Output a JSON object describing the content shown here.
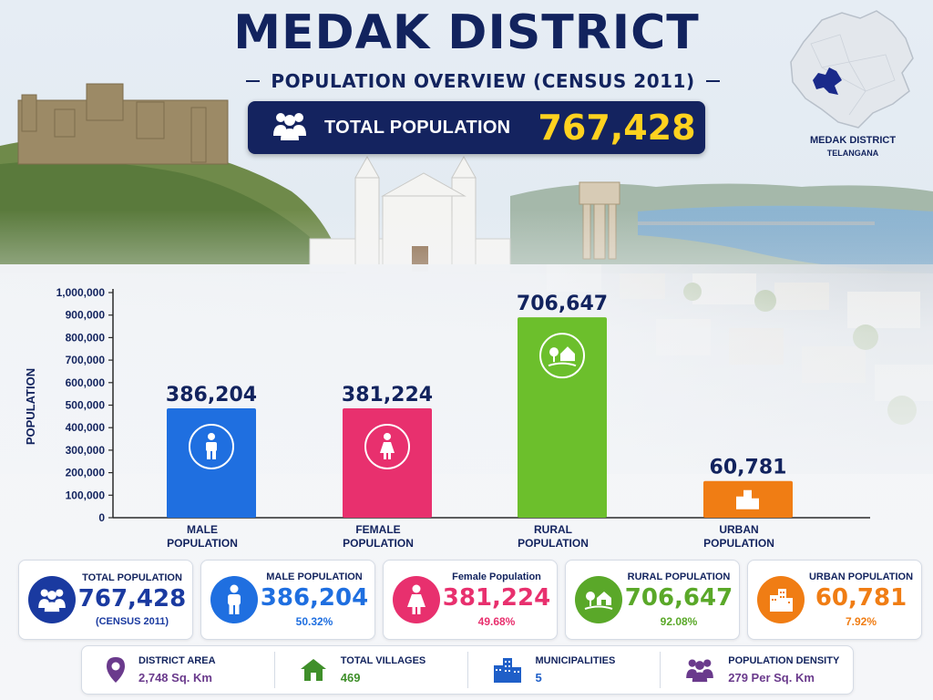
{
  "header": {
    "title": "MEDAK DISTRICT",
    "subtitle": "POPULATION OVERVIEW (CENSUS 2011)",
    "total_label": "TOTAL POPULATION",
    "total_value": "767,428"
  },
  "map": {
    "label": "MEDAK DISTRICT",
    "state": "TELANGANA",
    "highlight_color": "#1a2a8a"
  },
  "chart_data": {
    "type": "bar",
    "title": "",
    "ylabel": "POPULATION",
    "xlabel": "",
    "ylim": [
      0,
      1000000
    ],
    "yticks": [
      "0",
      "100,000",
      "200,000",
      "300,000",
      "400,000",
      "500,000",
      "600,000",
      "700,000",
      "800,000",
      "900,000",
      "1,000,000"
    ],
    "categories": [
      "MALE POPULATION",
      "FEMALE POPULATION",
      "RURAL POPULATION",
      "URBAN POPULATION"
    ],
    "categories_lines": [
      [
        "MALE",
        "POPULATION"
      ],
      [
        "FEMALE",
        "POPULATION"
      ],
      [
        "RURAL",
        "POPULATION"
      ],
      [
        "URBAN",
        "POPULATION"
      ]
    ],
    "values": [
      386204,
      381224,
      706647,
      60781
    ],
    "bar_heights": [
      486000,
      486000,
      890000,
      163000
    ],
    "value_labels": [
      "386,204",
      "381,224",
      "706,647",
      "60,781"
    ],
    "colors": [
      "#1f6fe0",
      "#e8306e",
      "#6cbf2c",
      "#f07d14"
    ],
    "icons": [
      "male-icon",
      "female-icon",
      "rural-home-icon",
      "buildings-icon"
    ],
    "grid": false
  },
  "cards": [
    {
      "label": "TOTAL POPULATION",
      "value": "767,428",
      "sub": "(CENSUS 2011)",
      "color": "#1a3aa0",
      "icon": "people-group-icon"
    },
    {
      "label": "MALE POPULATION",
      "value": "386,204",
      "sub": "50.32%",
      "color": "#1f6fe0",
      "icon": "male-icon"
    },
    {
      "label": "Female Population",
      "value": "381,224",
      "sub": "49.68%",
      "color": "#e8306e",
      "icon": "female-icon"
    },
    {
      "label": "RURAL POPULATION",
      "value": "706,647",
      "sub": "92.08%",
      "color": "#5aa829",
      "icon": "rural-home-icon"
    },
    {
      "label": "URBAN POPULATION",
      "value": "60,781",
      "sub": "7.92%",
      "color": "#f07d14",
      "icon": "buildings-icon"
    }
  ],
  "facts": [
    {
      "label": "DISTRICT AREA",
      "value": "2,748 Sq. Km",
      "color": "#6a3a8c",
      "icon": "location-pin-icon"
    },
    {
      "label": "TOTAL VILLAGES",
      "value": "469",
      "color": "#3f8f2a",
      "icon": "village-house-icon"
    },
    {
      "label": "MUNICIPALITIES",
      "value": "5",
      "color": "#1f5fc8",
      "icon": "city-buildings-icon"
    },
    {
      "label": "POPULATION DENSITY",
      "value": "279 Per Sq. Km",
      "color": "#6a3a8c",
      "icon": "people-density-icon"
    }
  ]
}
